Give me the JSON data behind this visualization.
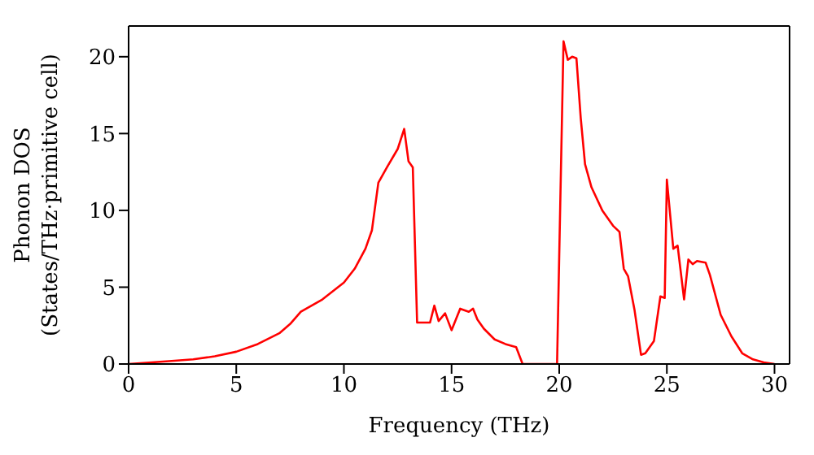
{
  "chart_data": {
    "type": "line",
    "xlabel": "Frequency (THz)",
    "ylabel": "Phonon DOS\n(States/THz·primitive cell)",
    "x": [
      0,
      2,
      3,
      4,
      5,
      6,
      7,
      7.5,
      8,
      9,
      10,
      10.5,
      11,
      11.3,
      11.6,
      12,
      12.5,
      12.8,
      13,
      13.2,
      13.4,
      14,
      14.2,
      14.4,
      14.7,
      15,
      15.4,
      15.8,
      16,
      16.2,
      16.5,
      17,
      17.5,
      18,
      18.3,
      19.9,
      20.2,
      20.4,
      20.6,
      20.8,
      21,
      21.2,
      21.5,
      22,
      22.5,
      22.8,
      23,
      23.2,
      23.5,
      23.8,
      24,
      24.4,
      24.7,
      24.9,
      25,
      25.3,
      25.5,
      25.8,
      26,
      26.2,
      26.4,
      26.8,
      27,
      27.5,
      28,
      28.5,
      29,
      29.5,
      30
    ],
    "series": [
      {
        "color": "#ff0000",
        "values": [
          0,
          0.2,
          0.3,
          0.5,
          0.8,
          1.3,
          2,
          2.6,
          3.4,
          4.2,
          5.3,
          6.2,
          7.5,
          8.7,
          11.8,
          12.8,
          14,
          15.3,
          13.2,
          12.8,
          2.7,
          2.7,
          3.8,
          2.8,
          3.3,
          2.2,
          3.6,
          3.4,
          3.6,
          2.9,
          2.3,
          1.6,
          1.3,
          1.1,
          0,
          0,
          21,
          19.8,
          20,
          19.9,
          16,
          13,
          11.5,
          10,
          9,
          8.6,
          6.2,
          5.7,
          3.5,
          0.6,
          0.7,
          1.5,
          4.4,
          4.3,
          12,
          7.5,
          7.7,
          4.2,
          6.8,
          6.5,
          6.7,
          6.6,
          5.8,
          3.2,
          1.8,
          0.7,
          0.3,
          0.1,
          0
        ]
      }
    ],
    "xlim": [
      0,
      30.7
    ],
    "xticks": [
      0,
      5,
      10,
      15,
      20,
      25,
      30
    ],
    "ylim": [
      0,
      22
    ],
    "yticks": [
      0,
      5,
      10,
      15,
      20
    ],
    "grid": false,
    "legend": false,
    "marker": "none",
    "line_style": "solid"
  }
}
